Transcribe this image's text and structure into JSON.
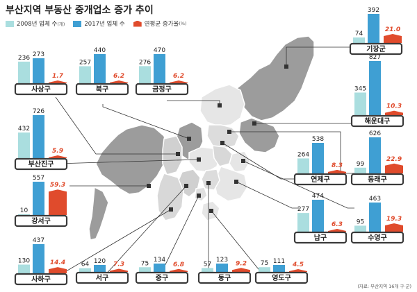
{
  "title": "부산지역 부동산 중개업소 증가 추이",
  "legend": {
    "y2008": "2008년 업체 수",
    "y2008_unit": "(개)",
    "y2017": "2017년 업체 수",
    "rate": "연평균 증가율",
    "rate_unit": "(%)"
  },
  "colors": {
    "y2008": "#aadedf",
    "y2017": "#3f9fd3",
    "rate": "#e04b2c",
    "label_bg": "#3a3a3a"
  },
  "source_note": "(자료: 부산지역 16개 구·군)",
  "chart_data": {
    "type": "bar",
    "series_keys": [
      "2008",
      "2017",
      "rate"
    ],
    "districts": [
      {
        "name": "기장군",
        "v2008": 74,
        "v2017": 392,
        "rate": "21.0"
      },
      {
        "name": "사상구",
        "v2008": 236,
        "v2017": 273,
        "rate": "1.7"
      },
      {
        "name": "북구",
        "v2008": 257,
        "v2017": 440,
        "rate": "6.2"
      },
      {
        "name": "금정구",
        "v2008": 276,
        "v2017": 470,
        "rate": "6.2"
      },
      {
        "name": "해운대구",
        "v2008": 345,
        "v2017": 827,
        "rate": "10.3"
      },
      {
        "name": "부산진구",
        "v2008": 432,
        "v2017": 726,
        "rate": "5.9"
      },
      {
        "name": "연제구",
        "v2008": 264,
        "v2017": 538,
        "rate": "8.3"
      },
      {
        "name": "동래구",
        "v2008": 99,
        "v2017": 626,
        "rate": "22.9"
      },
      {
        "name": "강서구",
        "v2008": 10,
        "v2017": 557,
        "rate": "59.3"
      },
      {
        "name": "남구",
        "v2008": 277,
        "v2017": 474,
        "rate": "6.3"
      },
      {
        "name": "수영구",
        "v2008": 95,
        "v2017": 463,
        "rate": "19.3"
      },
      {
        "name": "사하구",
        "v2008": 130,
        "v2017": 437,
        "rate": "14.4"
      },
      {
        "name": "서구",
        "v2008": 64,
        "v2017": 120,
        "rate": "7.3"
      },
      {
        "name": "중구",
        "v2008": 75,
        "v2017": 134,
        "rate": "6.8"
      },
      {
        "name": "동구",
        "v2008": 57,
        "v2017": 123,
        "rate": "9.2"
      },
      {
        "name": "영도구",
        "v2008": 75,
        "v2017": 111,
        "rate": "4.5"
      }
    ]
  }
}
